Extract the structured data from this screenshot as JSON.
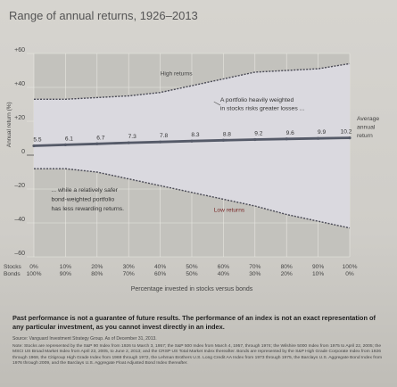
{
  "title": "Range of annual returns, 1926–2013",
  "chart_data": {
    "type": "area",
    "title": "Range of annual returns, 1926–2013",
    "xlabel": "Percentage invested in stocks versus bonds",
    "ylabel": "Annual return (%)",
    "ylim": [
      -60,
      60
    ],
    "yticks": [
      "+60",
      "+40",
      "+20",
      "0",
      "–20",
      "–40",
      "–60"
    ],
    "ytick_values": [
      60,
      40,
      20,
      0,
      -20,
      -40,
      -60
    ],
    "row_labels": {
      "stocks": "Stocks",
      "bonds": "Bonds"
    },
    "stocks": [
      "0%",
      "10%",
      "20%",
      "30%",
      "40%",
      "50%",
      "60%",
      "70%",
      "80%",
      "90%",
      "100%"
    ],
    "bonds": [
      "100%",
      "90%",
      "80%",
      "70%",
      "60%",
      "50%",
      "40%",
      "30%",
      "20%",
      "10%",
      "0%"
    ],
    "x": [
      0,
      10,
      20,
      30,
      40,
      50,
      60,
      70,
      80,
      90,
      100
    ],
    "series": [
      {
        "name": "High returns",
        "values": [
          33,
          33,
          34,
          35,
          37,
          41,
          45,
          49,
          50,
          51,
          54
        ]
      },
      {
        "name": "Average annual return",
        "values": [
          5.5,
          6.1,
          6.7,
          7.3,
          7.8,
          8.3,
          8.8,
          9.2,
          9.6,
          9.9,
          10.2
        ]
      },
      {
        "name": "Low returns",
        "values": [
          -8,
          -8,
          -10,
          -14,
          -18,
          -22,
          -26,
          -30,
          -35,
          -39,
          -43
        ]
      }
    ],
    "data_labels": [
      "5.5",
      "6.1",
      "6.7",
      "7.3",
      "7.8",
      "8.3",
      "8.8",
      "9.2",
      "9.6",
      "9.9",
      "10.2"
    ],
    "band_labels": {
      "high": "High returns",
      "low": "Low returns"
    },
    "average_label": "Average annual return",
    "annotations": [
      {
        "text": "A portfolio heavily weighted in stocks risks greater losses ..."
      },
      {
        "text": "... while a relatively safer bond-weighted portfolio has less rewarding returns."
      }
    ],
    "grid": true
  },
  "notes": {
    "bold": "Past performance is not a guarantee of future results. The performance of an index is not an exact representation of any particular investment, as you cannot invest directly in an index.",
    "source": "Source: Vanguard Investment Strategy Group. As of December 31, 2013.",
    "fineprint": "Note: Stocks are represented by the S&P 90 Index from 1926 to March 3, 1957; the S&P 500 Index from March 4, 1957, through 1974; the Wilshire 5000 Index from 1975 to April 22, 2005; the MSCI US Broad Market Index from April 23, 2005, to June 2, 2013; and the CRSP US Total Market Index thereafter. Bonds are represented by the S&P High Grade Corporate Index from 1926 through 1968, the Citigroup High Grade Index from 1969 through 1972, the Lehman Brothers U.S. Long Credit AA Index from 1973 through 1975, the Barclays U.S. Aggregate Bond Index from 1976 through 2009, and the Barclays U.S. Aggregate Float Adjusted Bond Index thereafter."
  },
  "colors": {
    "band_fill": "#dad9df",
    "band_edge": "#4a4a55",
    "average_line": "#555a68",
    "grid": "#e8e7e2",
    "zero_line": "#666666"
  }
}
